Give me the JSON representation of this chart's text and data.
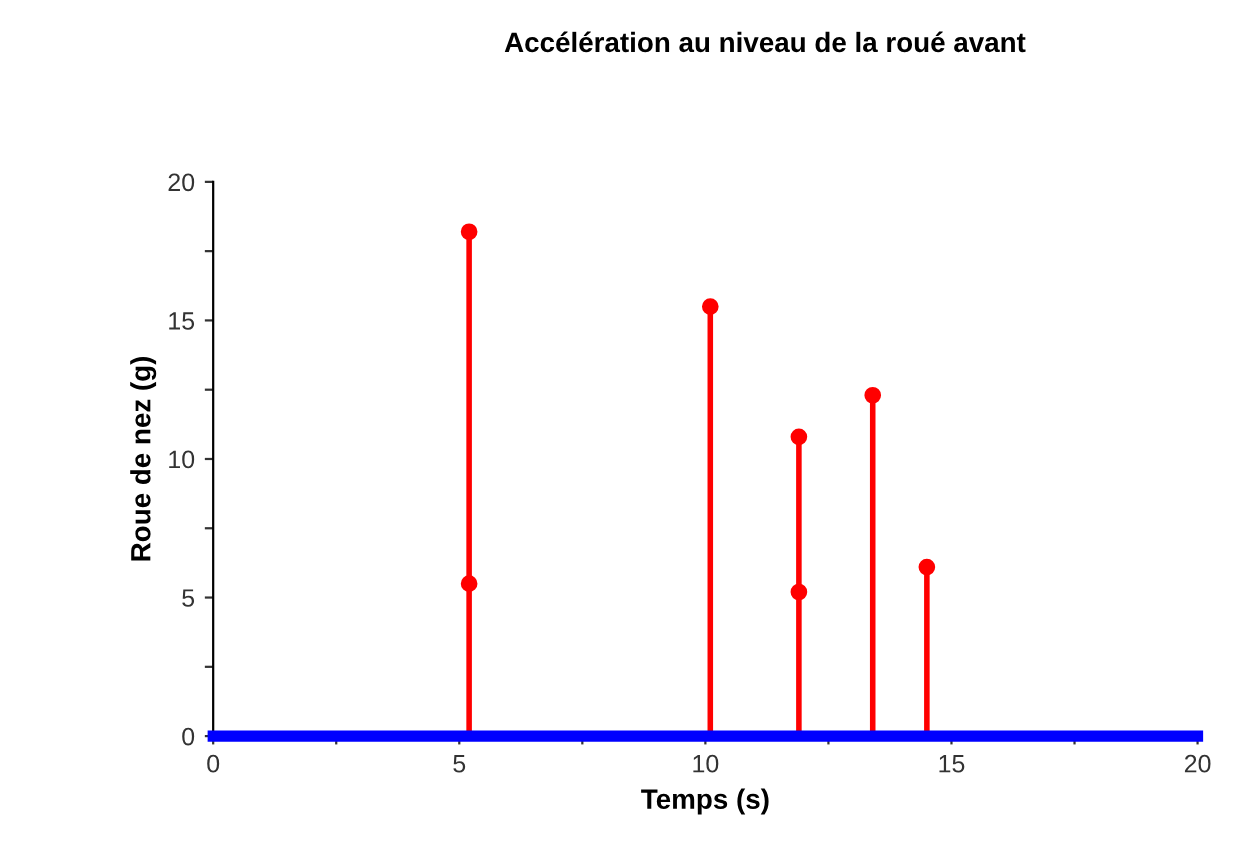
{
  "chart_data": {
    "type": "lollipop",
    "title": "Accélération au niveau de la roué avant",
    "xlabel": "Temps (s)",
    "ylabel": "Roue de nez (g)",
    "xlim": [
      0,
      20
    ],
    "ylim": [
      0,
      20
    ],
    "xticks": [
      0,
      {
        "value": 2.5,
        "label": null
      },
      5,
      {
        "value": 7.5,
        "label": null
      },
      10,
      {
        "value": 12.5,
        "label": null
      },
      15,
      {
        "value": 17.5,
        "label": null
      },
      20
    ],
    "yticks": [
      0,
      {
        "value": 2.5,
        "label": null
      },
      5,
      {
        "value": 7.5,
        "label": null
      },
      10,
      {
        "value": 12.5,
        "label": null
      },
      15,
      {
        "value": 17.5,
        "label": null
      },
      20
    ],
    "grid": false,
    "legend": false,
    "marker": "circle",
    "series": [
      {
        "color": "#ff0000",
        "x": [
          5.2,
          10.1,
          11.9,
          13.4,
          14.5
        ],
        "values": [
          18.2,
          15.5,
          10.8,
          12.3,
          6.1
        ]
      },
      {
        "type": "scatter",
        "color": "#ff0000",
        "x": [
          5.2,
          11.9
        ],
        "values": [
          5.5,
          5.2
        ]
      },
      {
        "type": "line",
        "color": "#0000ff",
        "x": [
          0,
          20
        ],
        "values": [
          0,
          0
        ],
        "line_style": "solid",
        "marker": "none"
      }
    ]
  }
}
